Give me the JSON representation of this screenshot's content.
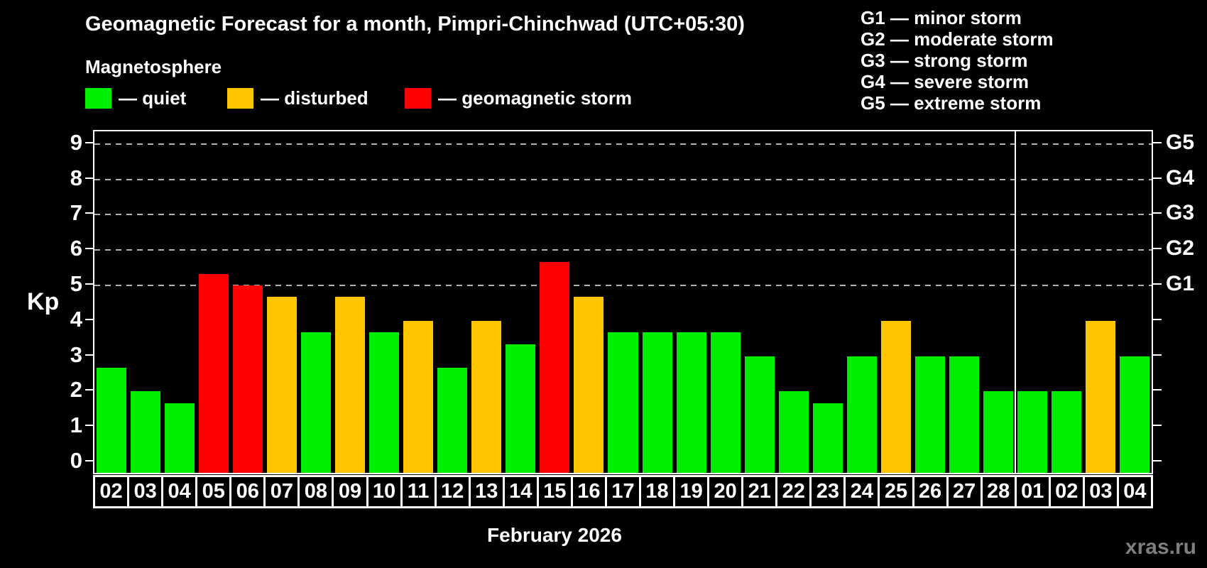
{
  "header": {
    "title": "Geomagnetic Forecast for a month, Pimpri-Chinchwad (UTC+05:30)",
    "subtitle": "Magnetosphere"
  },
  "legend": {
    "items": [
      {
        "key": "quiet",
        "label": "— quiet",
        "color": "#00ee00"
      },
      {
        "key": "disturbed",
        "label": "— disturbed",
        "color": "#ffc400"
      },
      {
        "key": "storm",
        "label": "— geomagnetic storm",
        "color": "#ff0000"
      }
    ]
  },
  "g_legend": {
    "lines": [
      "G1 — minor storm",
      "G2 — moderate storm",
      "G3 — strong storm",
      "G4 — severe storm",
      "G5 — extreme storm"
    ]
  },
  "footer": {
    "month_label": "February 2026",
    "watermark": "xras.ru"
  },
  "chart_data": {
    "type": "bar",
    "title": "Geomagnetic Forecast for a month, Pimpri-Chinchwad (UTC+05:30)",
    "ylabel": "Kp",
    "xlabel": "February 2026",
    "ylim": [
      0,
      9
    ],
    "yticks": [
      0,
      1,
      2,
      3,
      4,
      5,
      6,
      7,
      8,
      9
    ],
    "gridlines_at_kp": [
      5,
      6,
      7,
      8,
      9
    ],
    "grid": "dashed horizontal lines at Kp 5-9 only",
    "legend_position": "top-left",
    "right_axis_labels": [
      {
        "kp": 5,
        "text": "G1"
      },
      {
        "kp": 6,
        "text": "G2"
      },
      {
        "kp": 7,
        "text": "G3"
      },
      {
        "kp": 8,
        "text": "G4"
      },
      {
        "kp": 9,
        "text": "G5"
      }
    ],
    "month_separator_after_index": 26,
    "categories": [
      "02",
      "03",
      "04",
      "05",
      "06",
      "07",
      "08",
      "09",
      "10",
      "11",
      "12",
      "13",
      "14",
      "15",
      "16",
      "17",
      "18",
      "19",
      "20",
      "21",
      "22",
      "23",
      "24",
      "25",
      "26",
      "27",
      "28",
      "01",
      "02",
      "03",
      "04"
    ],
    "series": [
      {
        "name": "Kp forecast",
        "values": [
          2.67,
          2,
          1.67,
          5.33,
          5,
          4.67,
          3.67,
          4.67,
          3.67,
          4,
          2.67,
          4,
          3.33,
          5.67,
          4.67,
          3.67,
          3.67,
          3.67,
          3.67,
          3,
          2,
          1.67,
          3,
          4,
          3,
          3,
          2,
          2,
          2,
          4,
          3
        ],
        "statuses": [
          "quiet",
          "quiet",
          "quiet",
          "storm",
          "storm",
          "disturbed",
          "quiet",
          "disturbed",
          "quiet",
          "disturbed",
          "quiet",
          "disturbed",
          "quiet",
          "storm",
          "disturbed",
          "quiet",
          "quiet",
          "quiet",
          "quiet",
          "quiet",
          "quiet",
          "quiet",
          "quiet",
          "disturbed",
          "quiet",
          "quiet",
          "quiet",
          "quiet",
          "quiet",
          "disturbed",
          "quiet"
        ]
      }
    ],
    "status_colors": {
      "quiet": "#00ee00",
      "disturbed": "#ffc400",
      "storm": "#ff0000"
    }
  }
}
